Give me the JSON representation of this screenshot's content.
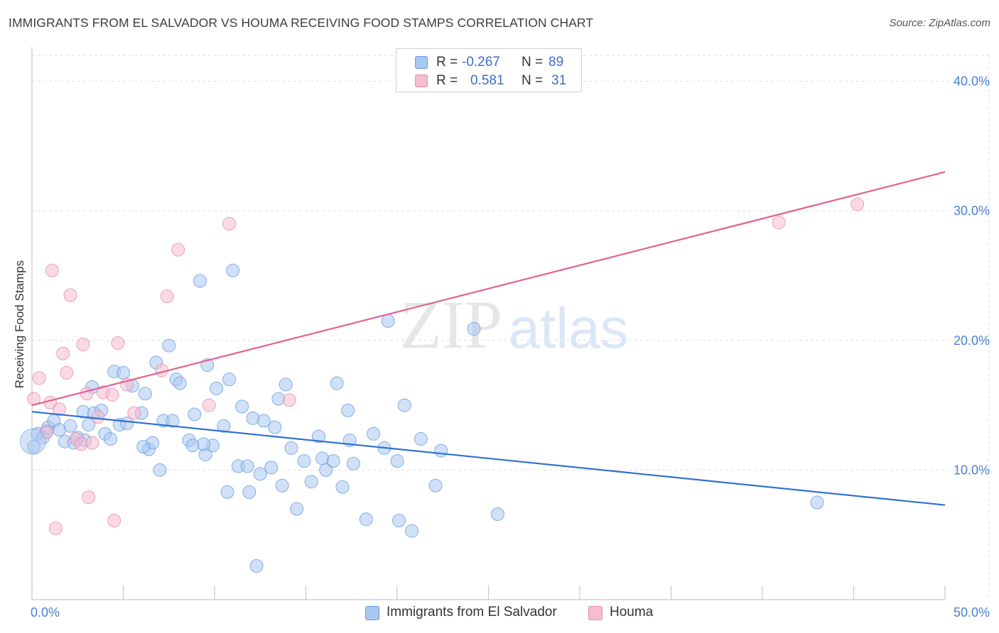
{
  "title": "IMMIGRANTS FROM EL SALVADOR VS HOUMA RECEIVING FOOD STAMPS CORRELATION CHART",
  "source": "Source: ZipAtlas.com",
  "watermark": {
    "zip": "ZIP",
    "atlas": "atlas"
  },
  "legend": {
    "r_label": "R =",
    "n_label": "N =",
    "series": [
      {
        "name": "Immigrants from El Salvador",
        "r": "-0.267",
        "n": "89",
        "color": "#a9c8f0",
        "edge": "#6a9be0"
      },
      {
        "name": "Houma",
        "r": "0.581",
        "n": "31",
        "color": "#f7bcd0",
        "edge": "#e88aaa"
      }
    ]
  },
  "chart_data": {
    "type": "scatter",
    "title": "IMMIGRANTS FROM EL SALVADOR VS HOUMA RECEIVING FOOD STAMPS CORRELATION CHART",
    "xlabel": "",
    "ylabel": "Receiving Food Stamps",
    "xlim": [
      0,
      50
    ],
    "ylim": [
      0,
      42
    ],
    "x_tick_labels": [
      "0.0%",
      "50.0%"
    ],
    "y_ticks": [
      10,
      20,
      30,
      40
    ],
    "y_tick_labels": [
      "10.0%",
      "20.0%",
      "30.0%",
      "40.0%"
    ],
    "series": [
      {
        "name": "Immigrants from El Salvador",
        "color": "#a9c8f0",
        "line_color": "#2f6fd0",
        "trend": [
          [
            0,
            14.5
          ],
          [
            50,
            7.3
          ]
        ],
        "points": [
          [
            0.3,
            12.8
          ],
          [
            0.6,
            12.5
          ],
          [
            0.8,
            13.0
          ],
          [
            0.9,
            13.3
          ],
          [
            1.2,
            13.8
          ],
          [
            1.5,
            13.1
          ],
          [
            1.8,
            12.2
          ],
          [
            2.1,
            13.4
          ],
          [
            2.3,
            12.1
          ],
          [
            2.5,
            12.5
          ],
          [
            2.8,
            14.5
          ],
          [
            3.1,
            13.5
          ],
          [
            3.3,
            16.4
          ],
          [
            3.4,
            14.4
          ],
          [
            3.8,
            14.6
          ],
          [
            4.0,
            12.8
          ],
          [
            4.3,
            12.4
          ],
          [
            4.5,
            17.6
          ],
          [
            4.8,
            13.5
          ],
          [
            5.0,
            17.5
          ],
          [
            5.2,
            13.6
          ],
          [
            5.5,
            16.5
          ],
          [
            6.0,
            14.4
          ],
          [
            6.2,
            15.9
          ],
          [
            6.4,
            11.6
          ],
          [
            6.6,
            12.1
          ],
          [
            6.8,
            18.3
          ],
          [
            7.0,
            10.0
          ],
          [
            7.2,
            13.8
          ],
          [
            7.5,
            19.6
          ],
          [
            7.7,
            13.8
          ],
          [
            7.9,
            17.0
          ],
          [
            8.1,
            16.7
          ],
          [
            8.6,
            12.3
          ],
          [
            8.8,
            11.9
          ],
          [
            8.9,
            14.3
          ],
          [
            9.2,
            24.6
          ],
          [
            9.5,
            11.2
          ],
          [
            9.6,
            18.1
          ],
          [
            9.9,
            11.9
          ],
          [
            10.1,
            16.3
          ],
          [
            10.5,
            13.4
          ],
          [
            10.7,
            8.3
          ],
          [
            10.8,
            17.0
          ],
          [
            11.0,
            25.4
          ],
          [
            11.3,
            10.3
          ],
          [
            11.5,
            14.9
          ],
          [
            11.8,
            10.3
          ],
          [
            11.9,
            8.3
          ],
          [
            12.1,
            14.0
          ],
          [
            12.3,
            2.6
          ],
          [
            12.5,
            9.7
          ],
          [
            12.7,
            13.8
          ],
          [
            13.1,
            10.2
          ],
          [
            13.3,
            13.3
          ],
          [
            13.5,
            15.5
          ],
          [
            13.7,
            8.8
          ],
          [
            13.9,
            16.6
          ],
          [
            14.2,
            11.7
          ],
          [
            14.5,
            7.0
          ],
          [
            14.9,
            10.7
          ],
          [
            15.3,
            9.1
          ],
          [
            15.7,
            12.6
          ],
          [
            15.9,
            10.9
          ],
          [
            16.1,
            10.0
          ],
          [
            16.7,
            16.7
          ],
          [
            17.0,
            8.7
          ],
          [
            17.3,
            14.6
          ],
          [
            17.4,
            12.3
          ],
          [
            17.6,
            10.5
          ],
          [
            18.3,
            6.2
          ],
          [
            18.7,
            12.8
          ],
          [
            19.3,
            11.7
          ],
          [
            19.5,
            21.5
          ],
          [
            20.0,
            10.7
          ],
          [
            20.1,
            6.1
          ],
          [
            20.4,
            15.0
          ],
          [
            20.8,
            5.3
          ],
          [
            21.3,
            12.4
          ],
          [
            22.1,
            8.8
          ],
          [
            22.4,
            11.5
          ],
          [
            24.2,
            20.9
          ],
          [
            25.5,
            6.6
          ],
          [
            43.0,
            7.5
          ],
          [
            0.1,
            11.8
          ],
          [
            2.9,
            12.3
          ],
          [
            6.1,
            11.8
          ],
          [
            9.4,
            12.0
          ],
          [
            16.5,
            10.7
          ]
        ]
      },
      {
        "name": "Houma",
        "color": "#f7bcd0",
        "line_color": "#e2628f",
        "trend": [
          [
            0,
            15.0
          ],
          [
            50,
            33.0
          ]
        ],
        "points": [
          [
            0.1,
            15.5
          ],
          [
            0.4,
            17.1
          ],
          [
            0.8,
            12.9
          ],
          [
            1.0,
            15.2
          ],
          [
            1.1,
            25.4
          ],
          [
            1.3,
            5.5
          ],
          [
            1.5,
            14.7
          ],
          [
            1.7,
            19.0
          ],
          [
            1.9,
            17.5
          ],
          [
            2.1,
            23.5
          ],
          [
            2.4,
            12.4
          ],
          [
            2.7,
            12.0
          ],
          [
            2.8,
            19.7
          ],
          [
            3.0,
            15.9
          ],
          [
            3.1,
            7.9
          ],
          [
            3.3,
            12.1
          ],
          [
            3.6,
            14.1
          ],
          [
            3.9,
            16.0
          ],
          [
            4.4,
            15.8
          ],
          [
            4.5,
            6.1
          ],
          [
            4.7,
            19.8
          ],
          [
            5.2,
            16.6
          ],
          [
            5.6,
            14.4
          ],
          [
            7.1,
            17.7
          ],
          [
            7.4,
            23.4
          ],
          [
            8.0,
            27.0
          ],
          [
            9.7,
            15.0
          ],
          [
            10.8,
            29.0
          ],
          [
            14.1,
            15.4
          ],
          [
            40.9,
            29.1
          ],
          [
            45.2,
            30.5
          ]
        ]
      }
    ]
  }
}
